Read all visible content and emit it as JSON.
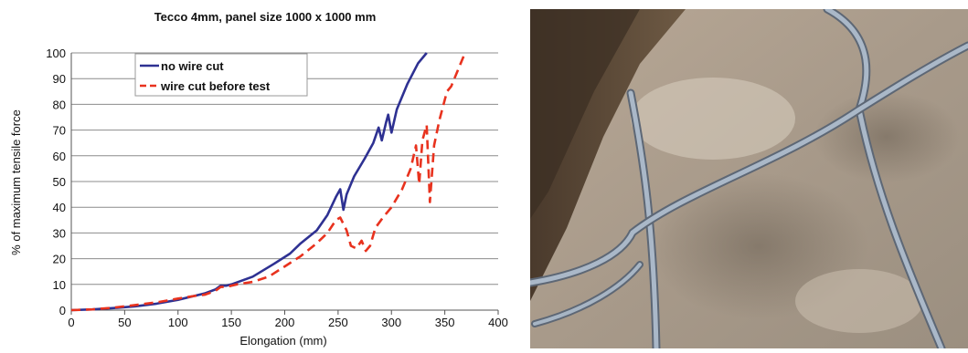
{
  "chart_data": {
    "type": "line",
    "title": "Tecco 4mm, panel size 1000 x 1000 mm",
    "xlabel": "Elongation (mm)",
    "ylabel": "% of maximum tensile force",
    "xlim": [
      0,
      400
    ],
    "ylim": [
      0,
      100
    ],
    "x_ticks": [
      0,
      50,
      100,
      150,
      200,
      250,
      300,
      350,
      400
    ],
    "y_ticks": [
      0,
      10,
      20,
      30,
      40,
      50,
      60,
      70,
      80,
      90,
      100
    ],
    "grid": "horizontal",
    "legend_position": "top-left",
    "series": [
      {
        "name": "no wire cut",
        "color": "#2e3192",
        "style": "solid",
        "points": [
          [
            0,
            0
          ],
          [
            20,
            0.3
          ],
          [
            40,
            0.8
          ],
          [
            60,
            1.5
          ],
          [
            80,
            2.5
          ],
          [
            100,
            4
          ],
          [
            115,
            5.5
          ],
          [
            125,
            6.5
          ],
          [
            135,
            8
          ],
          [
            140,
            9.5
          ],
          [
            145,
            9.5
          ],
          [
            150,
            10
          ],
          [
            170,
            13
          ],
          [
            190,
            18
          ],
          [
            205,
            22
          ],
          [
            215,
            26
          ],
          [
            230,
            31
          ],
          [
            240,
            37
          ],
          [
            248,
            44
          ],
          [
            252,
            47
          ],
          [
            255,
            39
          ],
          [
            258,
            45
          ],
          [
            265,
            52
          ],
          [
            275,
            59
          ],
          [
            283,
            65
          ],
          [
            288,
            71
          ],
          [
            291,
            66
          ],
          [
            295,
            73
          ],
          [
            297,
            76
          ],
          [
            300,
            69
          ],
          [
            305,
            78
          ],
          [
            315,
            88
          ],
          [
            325,
            96
          ],
          [
            333,
            100
          ]
        ]
      },
      {
        "name": "wire cut before test",
        "color": "#e8321e",
        "style": "dashed",
        "points": [
          [
            0,
            0
          ],
          [
            20,
            0.3
          ],
          [
            40,
            1
          ],
          [
            60,
            2
          ],
          [
            80,
            3
          ],
          [
            100,
            4.5
          ],
          [
            115,
            5.5
          ],
          [
            125,
            6
          ],
          [
            135,
            7.5
          ],
          [
            140,
            9
          ],
          [
            145,
            9
          ],
          [
            155,
            10
          ],
          [
            170,
            11
          ],
          [
            185,
            13
          ],
          [
            200,
            17
          ],
          [
            215,
            21
          ],
          [
            230,
            26
          ],
          [
            240,
            30
          ],
          [
            248,
            35
          ],
          [
            252,
            36
          ],
          [
            258,
            31
          ],
          [
            262,
            25
          ],
          [
            267,
            24
          ],
          [
            272,
            27
          ],
          [
            276,
            23
          ],
          [
            280,
            25
          ],
          [
            285,
            32
          ],
          [
            292,
            36
          ],
          [
            300,
            40
          ],
          [
            310,
            47
          ],
          [
            318,
            55
          ],
          [
            323,
            64
          ],
          [
            326,
            49
          ],
          [
            329,
            66
          ],
          [
            333,
            72
          ],
          [
            336,
            42
          ],
          [
            340,
            64
          ],
          [
            345,
            74
          ],
          [
            352,
            85
          ],
          [
            356,
            87
          ],
          [
            362,
            93
          ],
          [
            368,
            99
          ]
        ]
      }
    ]
  },
  "photo": {
    "description_icon": "wire-mesh-photo"
  }
}
